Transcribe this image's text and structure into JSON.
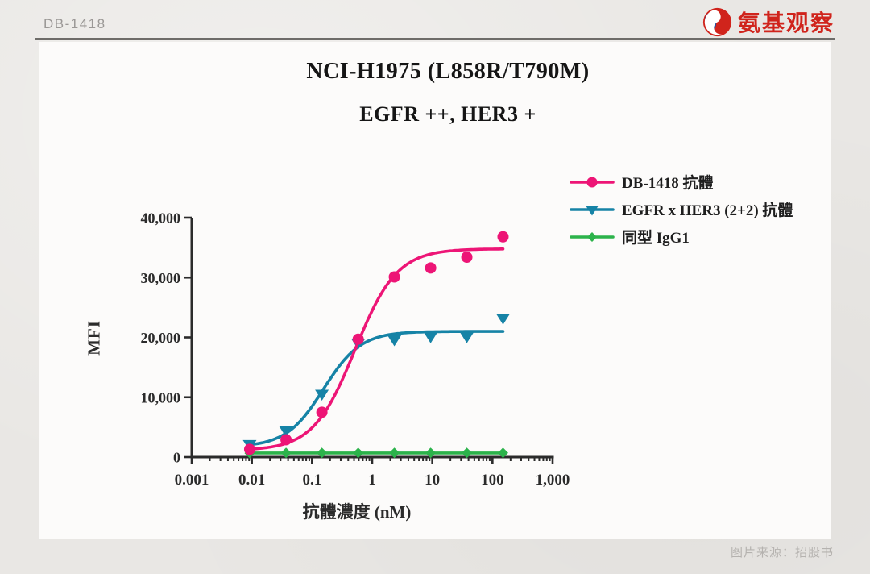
{
  "page": {
    "brand": "DB-1418",
    "logo": {
      "text": "氨基观察"
    },
    "source_note": "图片来源：招股书"
  },
  "chart_data": {
    "type": "line",
    "title": "NCI-H1975 (L858R/T790M)",
    "subtitle": "EGFR ++, HER3 +",
    "xlabel": "抗體濃度 (nM)",
    "ylabel": "MFI",
    "x_scale": "log",
    "xlim": [
      0.001,
      1000
    ],
    "ylim": [
      0,
      40000
    ],
    "x_ticks": [
      0.001,
      0.01,
      0.1,
      1,
      10,
      100,
      1000
    ],
    "x_tick_labels": [
      "0.001",
      "0.01",
      "0.1",
      "1",
      "10",
      "100",
      "1,000"
    ],
    "y_ticks": [
      0,
      10000,
      20000,
      30000,
      40000
    ],
    "y_tick_labels": [
      "0",
      "10,000",
      "20,000",
      "30,000",
      "40,000"
    ],
    "grid": false,
    "legend_position": "upper-right",
    "x": [
      0.0092,
      0.037,
      0.146,
      0.586,
      2.34,
      9.38,
      37.5,
      150
    ],
    "series": [
      {
        "name": "DB-1418 抗體",
        "color": "#ED1576",
        "marker": "circle",
        "values": [
          1300,
          2900,
          7500,
          19700,
          30100,
          31600,
          33400,
          36800
        ],
        "fit_4pl": {
          "bottom": 1100,
          "top": 34800,
          "ec50": 0.52,
          "hill": 1.25
        }
      },
      {
        "name": "EGFR x HER3 (2+2) 抗體",
        "color": "#1683A6",
        "marker": "triangle-down",
        "values": [
          2100,
          4400,
          10500,
          19000,
          19600,
          20100,
          20100,
          23200
        ],
        "fit_4pl": {
          "bottom": 1700,
          "top": 21000,
          "ec50": 0.155,
          "hill": 1.4
        }
      },
      {
        "name": "同型 IgG1",
        "color": "#2CB34B",
        "marker": "diamond",
        "values": [
          650,
          700,
          700,
          700,
          700,
          700,
          700,
          700
        ],
        "fit_4pl": {
          "bottom": 690,
          "top": 690,
          "ec50": 1,
          "hill": 1
        }
      }
    ]
  }
}
